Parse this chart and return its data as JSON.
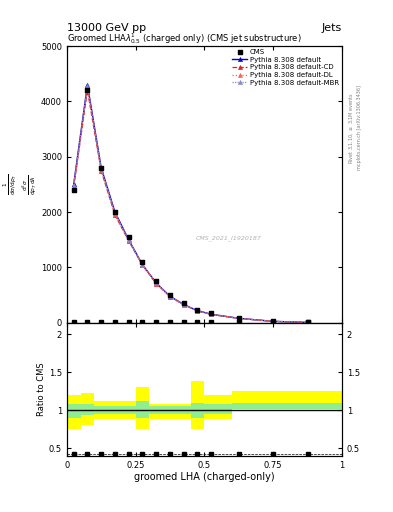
{
  "title_top": "13000 GeV pp",
  "title_right": "Jets",
  "plot_title": "Groomed LHA$\\lambda^{1}_{0.5}$ (charged only) (CMS jet substructure)",
  "xlabel": "groomed LHA (charged-only)",
  "ylabel_ratio": "Ratio to CMS",
  "right_label": "Rivet 3.1.10, $\\geq$ 3.1M events",
  "right_label2": "mcplots.cern.ch [arXiv:1306.3436]",
  "watermark": "CMS_2021_I1920187",
  "x_data": [
    0.025,
    0.075,
    0.125,
    0.175,
    0.225,
    0.275,
    0.325,
    0.375,
    0.425,
    0.475,
    0.525,
    0.625,
    0.75,
    0.875
  ],
  "cms_data": [
    2400,
    4200,
    2800,
    2000,
    1550,
    1100,
    750,
    500,
    350,
    230,
    170,
    90,
    30,
    10
  ],
  "pythia_default": [
    2500,
    4300,
    2800,
    2000,
    1500,
    1050,
    720,
    480,
    330,
    220,
    155,
    82,
    27,
    8
  ],
  "pythia_cd": [
    2450,
    4200,
    2750,
    1950,
    1480,
    1040,
    710,
    475,
    325,
    215,
    152,
    80,
    26,
    8
  ],
  "pythia_dl": [
    2480,
    4250,
    2770,
    1970,
    1490,
    1045,
    715,
    478,
    328,
    217,
    153,
    81,
    27,
    8
  ],
  "pythia_mbr": [
    2480,
    4280,
    2790,
    1990,
    1495,
    1048,
    718,
    479,
    330,
    218,
    154,
    81,
    27,
    8
  ],
  "ratio_x_edges": [
    0.0,
    0.05,
    0.1,
    0.15,
    0.2,
    0.25,
    0.3,
    0.35,
    0.4,
    0.45,
    0.5,
    0.6,
    0.7,
    0.8,
    0.9,
    1.0
  ],
  "ratio_yellow_lo": [
    0.75,
    0.8,
    0.88,
    0.88,
    0.88,
    0.75,
    0.88,
    0.88,
    0.88,
    0.75,
    0.88,
    1.05,
    1.05,
    1.05,
    1.05
  ],
  "ratio_yellow_hi": [
    1.2,
    1.22,
    1.12,
    1.12,
    1.12,
    1.3,
    1.08,
    1.08,
    1.08,
    1.38,
    1.2,
    1.25,
    1.25,
    1.25,
    1.25
  ],
  "ratio_green_lo": [
    0.9,
    0.93,
    0.95,
    0.95,
    0.95,
    0.9,
    0.95,
    0.95,
    0.95,
    0.9,
    0.95,
    1.02,
    1.02,
    1.02,
    1.02
  ],
  "ratio_green_hi": [
    1.08,
    1.08,
    1.05,
    1.05,
    1.05,
    1.12,
    1.05,
    1.05,
    1.05,
    1.1,
    1.08,
    1.1,
    1.1,
    1.1,
    1.1
  ],
  "color_default": "#0000cc",
  "color_cd": "#dd2222",
  "color_dl": "#ee6666",
  "color_mbr": "#8888cc",
  "ylim_main": [
    0,
    5000
  ],
  "ylim_ratio": [
    0.4,
    2.15
  ],
  "yticks_main": [
    0,
    1000,
    2000,
    3000,
    4000,
    5000
  ],
  "yticks_ratio": [
    0.5,
    1.0,
    1.5,
    2.0
  ]
}
